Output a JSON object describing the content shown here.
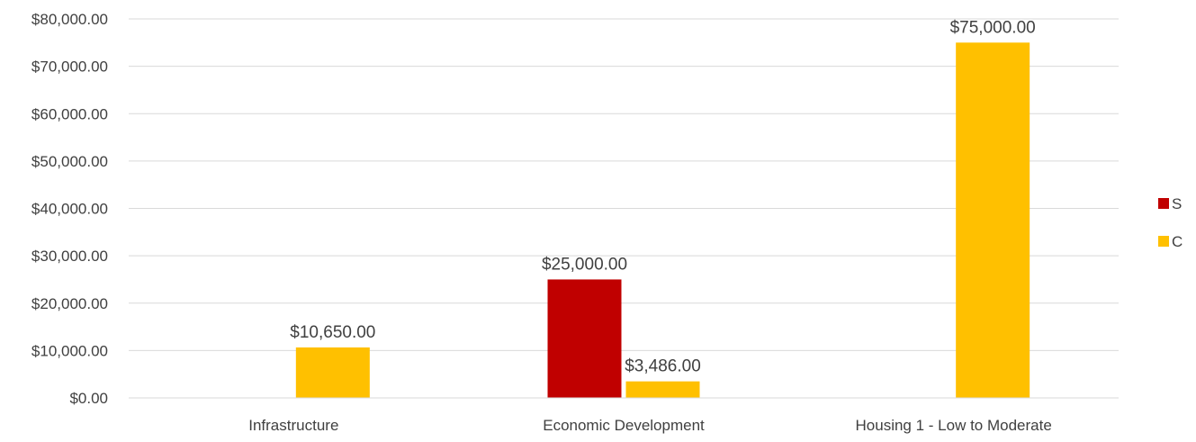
{
  "chart_data": {
    "type": "bar",
    "title": "",
    "xlabel": "",
    "ylabel": "",
    "categories": [
      "Infrastructure",
      "Economic Development",
      "Housing 1 - Low to Moderate"
    ],
    "series": [
      {
        "name": "S",
        "color": "#C00000",
        "values": [
          0,
          25000,
          0
        ],
        "labels": [
          "",
          "$25,000.00",
          ""
        ]
      },
      {
        "name": "C",
        "color": "#FFC000",
        "values": [
          10650,
          3486,
          75000
        ],
        "labels": [
          "$10,650.00",
          "$3,486.00",
          "$75,000.00"
        ]
      }
    ],
    "ylim": [
      0,
      80000
    ],
    "yticks": [
      0,
      10000,
      20000,
      30000,
      40000,
      50000,
      60000,
      70000,
      80000
    ],
    "ytick_labels": [
      "$0.00",
      "$10,000.00",
      "$20,000.00",
      "$30,000.00",
      "$40,000.00",
      "$50,000.00",
      "$60,000.00",
      "$70,000.00",
      "$80,000.00"
    ],
    "grid": true,
    "legend_position": "right",
    "gridline_color": "#D9D9D9"
  }
}
